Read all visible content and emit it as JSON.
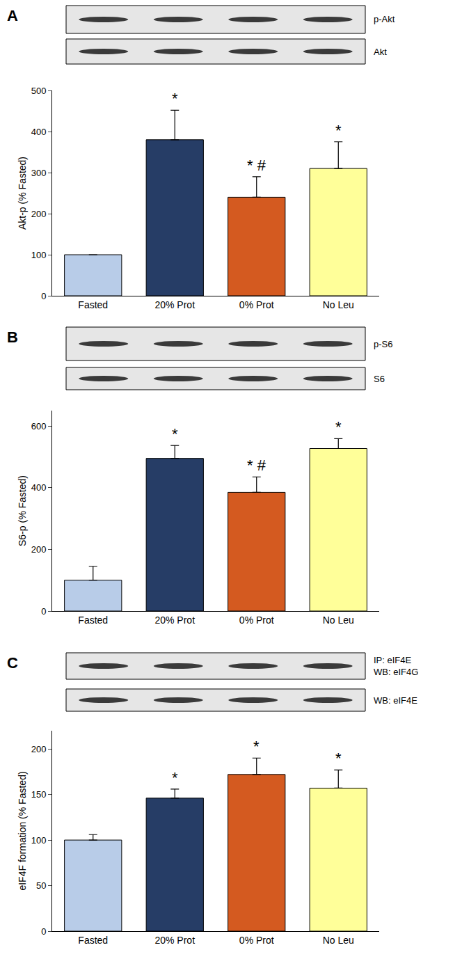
{
  "chart_data": [
    {
      "type": "bar",
      "panel_label": "A",
      "categories": [
        "Fasted",
        "20% Prot",
        "0% Prot",
        "No Leu"
      ],
      "values": [
        100,
        380,
        240,
        310
      ],
      "errors": [
        0,
        72,
        50,
        65
      ],
      "colors": [
        "#b8cce8",
        "#263d66",
        "#d45a20",
        "#ffff99"
      ],
      "y_label": "Akt-p (% Fasted)",
      "ylim": [
        0,
        500
      ],
      "yticks": [
        0,
        100,
        200,
        300,
        400,
        500
      ],
      "annotations": [
        {
          "category": "20% Prot",
          "text": "*"
        },
        {
          "category": "0% Prot",
          "text": "* #"
        },
        {
          "category": "No Leu",
          "text": "*"
        }
      ],
      "blots": [
        {
          "label": [
            "p-Akt"
          ]
        },
        {
          "label": [
            "Akt"
          ]
        }
      ]
    },
    {
      "type": "bar",
      "panel_label": "B",
      "categories": [
        "Fasted",
        "20% Prot",
        "0% Prot",
        "No Leu"
      ],
      "values": [
        100,
        495,
        385,
        527
      ],
      "errors": [
        45,
        42,
        50,
        32
      ],
      "colors": [
        "#b8cce8",
        "#263d66",
        "#d45a20",
        "#ffff99"
      ],
      "y_label": "S6-p (% Fasted)",
      "ylim": [
        0,
        650
      ],
      "yticks": [
        0,
        200,
        400,
        600
      ],
      "annotations": [
        {
          "category": "20% Prot",
          "text": "*"
        },
        {
          "category": "0% Prot",
          "text": "* #"
        },
        {
          "category": "No Leu",
          "text": "*"
        }
      ],
      "blots": [
        {
          "label": [
            "p-S6"
          ]
        },
        {
          "label": [
            "S6"
          ]
        }
      ]
    },
    {
      "type": "bar",
      "panel_label": "C",
      "categories": [
        "Fasted",
        "20% Prot",
        "0% Prot",
        "No Leu"
      ],
      "values": [
        100,
        146,
        172,
        157
      ],
      "errors": [
        6,
        10,
        18,
        20
      ],
      "colors": [
        "#b8cce8",
        "#263d66",
        "#d45a20",
        "#ffff99"
      ],
      "y_label": "eIF4F formation (% Fasted)",
      "ylim": [
        0,
        220
      ],
      "yticks": [
        0,
        50,
        100,
        150,
        200
      ],
      "annotations": [
        {
          "category": "20% Prot",
          "text": "*"
        },
        {
          "category": "0% Prot",
          "text": "*"
        },
        {
          "category": "No Leu",
          "text": "*"
        }
      ],
      "blots": [
        {
          "label": [
            "IP: eIF4E",
            "WB: eIF4G"
          ]
        },
        {
          "label": [
            "WB: eIF4E"
          ]
        }
      ]
    }
  ]
}
